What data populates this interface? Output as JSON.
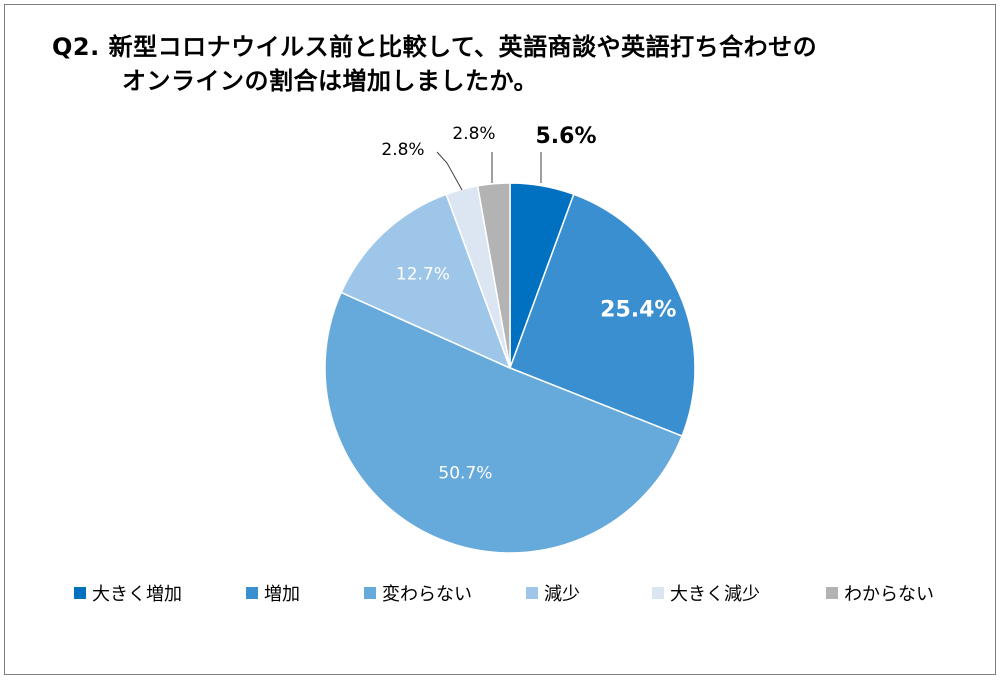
{
  "title": {
    "line1": "Q2.  新型コロナウイルス前と比較して、英語商談や英語打ち合わせの",
    "line2": "オンラインの割合は増加しましたか。"
  },
  "chart_data": {
    "type": "pie",
    "start_angle_deg": 0,
    "direction": "clockwise",
    "slices": [
      {
        "label": "大きく増加",
        "value": 5.6,
        "display": "5.6%",
        "color": "#0070c0",
        "label_placement": "outside-callout",
        "label_color": "#000000",
        "label_bold": true
      },
      {
        "label": "増加",
        "value": 25.4,
        "display": "25.4%",
        "color": "#3a8fd0",
        "label_placement": "inside",
        "label_color": "#ffffff",
        "label_bold": true
      },
      {
        "label": "変わらない",
        "value": 50.7,
        "display": "50.7%",
        "color": "#66a9db",
        "label_placement": "inside",
        "label_color": "#ffffff",
        "label_bold": false
      },
      {
        "label": "減少",
        "value": 12.7,
        "display": "12.7%",
        "color": "#9dc6e8",
        "label_placement": "inside",
        "label_color": "#ffffff",
        "label_bold": false
      },
      {
        "label": "大きく減少",
        "value": 2.8,
        "display": "2.8%",
        "color": "#dce6f3",
        "label_placement": "outside-callout",
        "label_color": "#000000",
        "label_bold": false
      },
      {
        "label": "わからない",
        "value": 2.8,
        "display": "2.8%",
        "color": "#b3b3b3",
        "label_placement": "outside-callout",
        "label_color": "#000000",
        "label_bold": false
      }
    ],
    "legend_position": "bottom"
  }
}
